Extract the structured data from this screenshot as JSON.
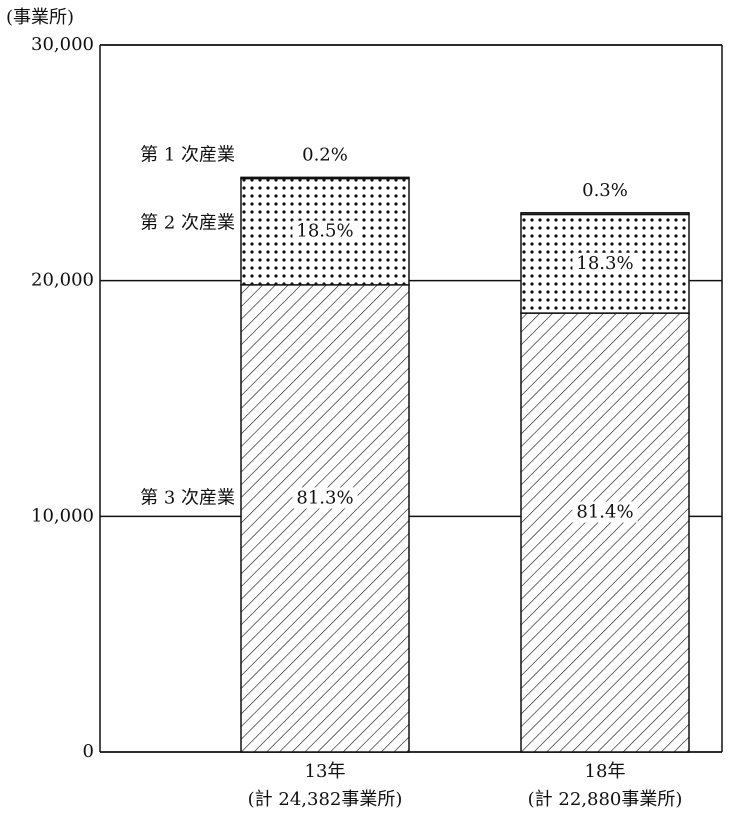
{
  "chart_data": {
    "type": "stacked_bar",
    "y_label": "(事業所)",
    "categories": [
      "13年",
      "18年"
    ],
    "category_totals": [
      "(計 24,382事業所)",
      "(計 22,880事業所)"
    ],
    "series": [
      {
        "name": "第 1 次産業",
        "pattern": "none",
        "color": "#ffffff",
        "values": [
          49,
          69
        ],
        "value_labels": [
          "0.2%",
          "0.3%"
        ]
      },
      {
        "name": "第 2 次産業",
        "pattern": "dots",
        "color": "#111111",
        "values": [
          4511,
          4187
        ],
        "value_labels": [
          "18.5%",
          "18.3%"
        ]
      },
      {
        "name": "第 3 次産業",
        "pattern": "hatch",
        "color": "#111111",
        "values": [
          19823,
          18624
        ],
        "value_labels": [
          "81.3%",
          "81.4%"
        ]
      }
    ],
    "ylim": [
      0,
      30000
    ],
    "yticks": [
      {
        "value": 0,
        "label": "0"
      },
      {
        "value": 10000,
        "label": "10,000"
      },
      {
        "value": 20000,
        "label": "20,000"
      },
      {
        "value": 30000,
        "label": "30,000"
      }
    ],
    "grid": true
  }
}
